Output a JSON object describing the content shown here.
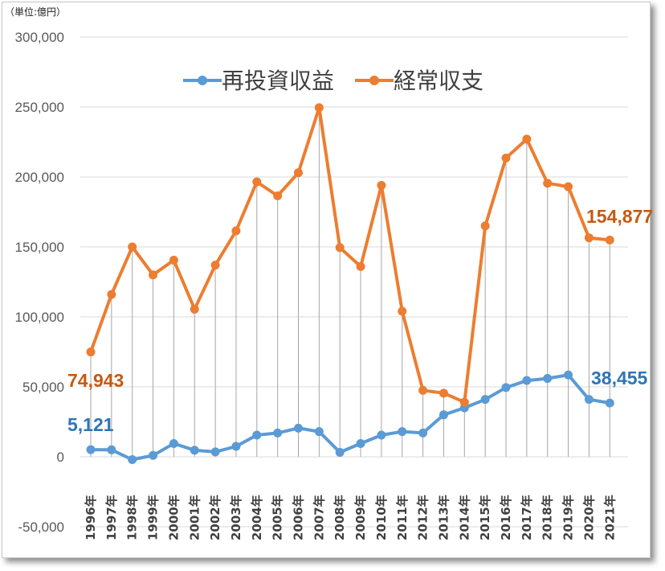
{
  "unit_label": "（単位:億円）",
  "chart_data": {
    "type": "line",
    "title": "",
    "xlabel": "",
    "ylabel": "",
    "ylim": [
      -50000,
      300000
    ],
    "yticks": [
      -50000,
      0,
      50000,
      100000,
      150000,
      200000,
      250000,
      300000
    ],
    "ytick_labels": [
      "-50,000",
      "0",
      "50,000",
      "100,000",
      "150,000",
      "200,000",
      "250,000",
      "300,000"
    ],
    "grid": true,
    "legend_position": "top",
    "categories": [
      "1996年",
      "1997年",
      "1998年",
      "1999年",
      "2000年",
      "2001年",
      "2002年",
      "2003年",
      "2004年",
      "2005年",
      "2006年",
      "2007年",
      "2008年",
      "2009年",
      "2010年",
      "2011年",
      "2012年",
      "2013年",
      "2014年",
      "2015年",
      "2016年",
      "2017年",
      "2018年",
      "2019年",
      "2020年",
      "2021年"
    ],
    "series": [
      {
        "name": "再投資収益",
        "color": "#5b9bd5",
        "values": [
          5121,
          5000,
          -2000,
          1000,
          9500,
          4700,
          3500,
          7500,
          15500,
          17000,
          20500,
          18000,
          3200,
          9500,
          15500,
          18000,
          17000,
          30000,
          35000,
          41000,
          49500,
          54500,
          56000,
          58500,
          41000,
          38455
        ]
      },
      {
        "name": "経常収支",
        "color": "#ed7d31",
        "values": [
          74943,
          116000,
          150000,
          130000,
          140500,
          105500,
          137000,
          161500,
          196500,
          186500,
          203000,
          249500,
          149500,
          136000,
          194000,
          104000,
          47500,
          45500,
          39000,
          165000,
          213500,
          227000,
          195500,
          193000,
          156500,
          154877
        ]
      }
    ],
    "data_labels": [
      {
        "series": 1,
        "index": 0,
        "text": "74,943"
      },
      {
        "series": 1,
        "index": 25,
        "text": "154,877"
      },
      {
        "series": 0,
        "index": 0,
        "text": "5,121"
      },
      {
        "series": 0,
        "index": 25,
        "text": "38,455"
      }
    ]
  }
}
